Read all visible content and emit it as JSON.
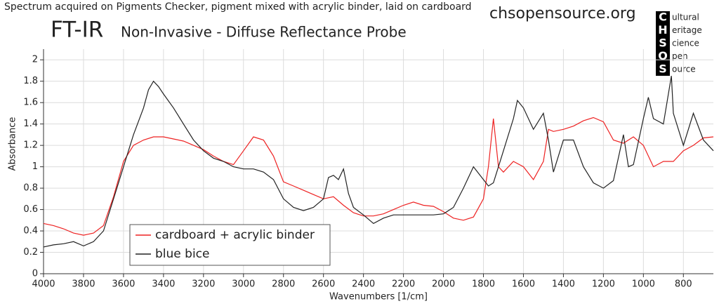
{
  "header": {
    "caption": "Spectrum acquired on Pigments Checker, pigment mixed with acrylic binder, laid on cardboard",
    "title": "FT-IR",
    "subtitle": "Non-Invasive - Diffuse Reflectance Probe",
    "source": "chsopensource.org",
    "logo_letters": [
      "C",
      "H",
      "S",
      "O",
      "S"
    ],
    "logo_words": [
      "ultural",
      "eritage",
      "cience",
      "pen",
      "ource"
    ]
  },
  "chart_data": {
    "type": "line",
    "x_label": "Wavenumbers [1/cm]",
    "y_label": "Absorbance",
    "xlim": [
      4000,
      650
    ],
    "ylim": [
      0,
      2.1
    ],
    "xticks": [
      4000,
      3800,
      3600,
      3400,
      3200,
      3000,
      2800,
      2600,
      2400,
      2200,
      2000,
      1800,
      1600,
      1400,
      1200,
      1000,
      800
    ],
    "yticks": [
      0,
      0.2,
      0.4,
      0.6,
      0.8,
      1,
      1.2,
      1.4,
      1.6,
      1.8,
      2
    ],
    "grid": true,
    "legend": "lower-left",
    "series": [
      {
        "name": "cardboard + acrylic binder",
        "color": "#ee2222",
        "x": [
          4000,
          3950,
          3900,
          3850,
          3800,
          3750,
          3700,
          3650,
          3600,
          3550,
          3500,
          3450,
          3400,
          3350,
          3300,
          3250,
          3200,
          3150,
          3100,
          3050,
          3000,
          2950,
          2900,
          2850,
          2800,
          2750,
          2700,
          2650,
          2600,
          2550,
          2500,
          2450,
          2400,
          2350,
          2300,
          2250,
          2200,
          2150,
          2100,
          2050,
          2000,
          1950,
          1900,
          1850,
          1800,
          1775,
          1750,
          1725,
          1700,
          1650,
          1600,
          1550,
          1500,
          1475,
          1450,
          1400,
          1350,
          1300,
          1250,
          1200,
          1150,
          1100,
          1050,
          1000,
          950,
          900,
          850,
          800,
          750,
          700,
          650
        ],
        "values": [
          0.47,
          0.45,
          0.42,
          0.38,
          0.36,
          0.38,
          0.45,
          0.72,
          1.05,
          1.2,
          1.25,
          1.28,
          1.28,
          1.26,
          1.24,
          1.2,
          1.16,
          1.1,
          1.05,
          1.02,
          1.15,
          1.28,
          1.25,
          1.1,
          0.86,
          0.82,
          0.78,
          0.74,
          0.7,
          0.72,
          0.64,
          0.57,
          0.54,
          0.54,
          0.56,
          0.6,
          0.64,
          0.67,
          0.64,
          0.63,
          0.58,
          0.52,
          0.5,
          0.53,
          0.7,
          1.0,
          1.45,
          1.0,
          0.95,
          1.05,
          1.0,
          0.88,
          1.05,
          1.35,
          1.33,
          1.35,
          1.38,
          1.43,
          1.46,
          1.42,
          1.25,
          1.22,
          1.28,
          1.2,
          1.0,
          1.05,
          1.05,
          1.15,
          1.2,
          1.27,
          1.28
        ]
      },
      {
        "name": "blue bice",
        "color": "#222222",
        "x": [
          4000,
          3950,
          3900,
          3850,
          3800,
          3750,
          3700,
          3650,
          3600,
          3550,
          3500,
          3475,
          3450,
          3425,
          3400,
          3350,
          3300,
          3250,
          3200,
          3150,
          3100,
          3050,
          3000,
          2950,
          2900,
          2850,
          2800,
          2750,
          2700,
          2650,
          2600,
          2575,
          2550,
          2525,
          2500,
          2475,
          2450,
          2400,
          2350,
          2300,
          2250,
          2200,
          2150,
          2100,
          2050,
          2000,
          1950,
          1900,
          1850,
          1800,
          1775,
          1750,
          1725,
          1700,
          1650,
          1630,
          1600,
          1550,
          1500,
          1475,
          1450,
          1400,
          1350,
          1300,
          1250,
          1200,
          1150,
          1100,
          1075,
          1050,
          1000,
          975,
          950,
          900,
          860,
          850,
          800,
          750,
          700,
          650
        ],
        "values": [
          0.25,
          0.27,
          0.28,
          0.3,
          0.26,
          0.3,
          0.4,
          0.7,
          1.0,
          1.3,
          1.55,
          1.72,
          1.8,
          1.75,
          1.68,
          1.55,
          1.4,
          1.25,
          1.15,
          1.08,
          1.05,
          1.0,
          0.98,
          0.98,
          0.95,
          0.88,
          0.7,
          0.62,
          0.59,
          0.62,
          0.7,
          0.9,
          0.92,
          0.88,
          0.98,
          0.75,
          0.62,
          0.55,
          0.47,
          0.52,
          0.55,
          0.55,
          0.55,
          0.55,
          0.55,
          0.56,
          0.62,
          0.8,
          1.0,
          0.88,
          0.82,
          0.85,
          1.0,
          1.15,
          1.45,
          1.62,
          1.55,
          1.35,
          1.5,
          1.25,
          0.95,
          1.25,
          1.25,
          1.0,
          0.85,
          0.8,
          0.87,
          1.3,
          1.0,
          1.02,
          1.45,
          1.65,
          1.45,
          1.4,
          1.85,
          1.5,
          1.2,
          1.5,
          1.25,
          1.15
        ]
      }
    ]
  }
}
